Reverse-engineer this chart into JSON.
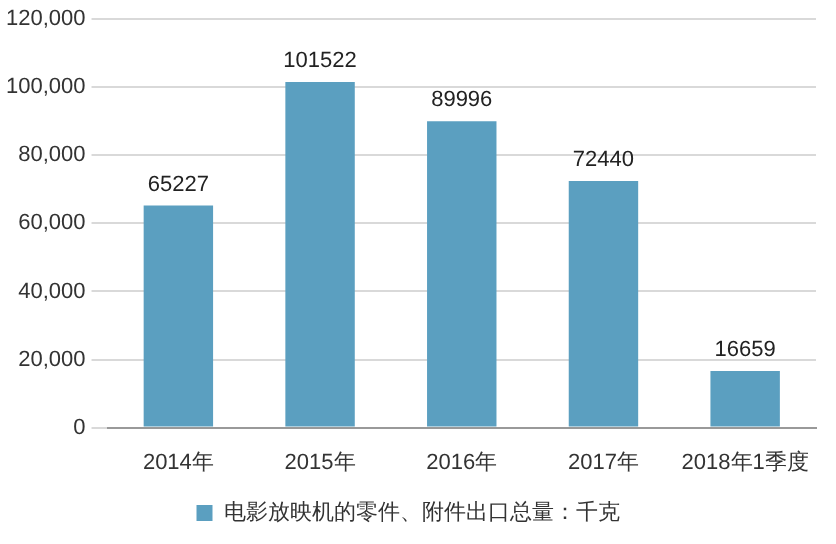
{
  "chart_data": {
    "type": "bar",
    "categories": [
      "2014年",
      "2015年",
      "2016年",
      "2017年",
      "2018年1季度"
    ],
    "series": [
      {
        "name": "电影放映机的零件、附件出口总量：千克",
        "color": "#5b9fc0",
        "values": [
          65227,
          101522,
          89996,
          72440,
          16659
        ]
      }
    ],
    "ylim": [
      0,
      120000
    ],
    "yticks": [
      {
        "value": 0,
        "label": "0"
      },
      {
        "value": 20000,
        "label": "20,000"
      },
      {
        "value": 40000,
        "label": "40,000"
      },
      {
        "value": 60000,
        "label": "60,000"
      },
      {
        "value": 80000,
        "label": "80,000"
      },
      {
        "value": 100000,
        "label": "100,000"
      },
      {
        "value": 120000,
        "label": "120,000"
      }
    ],
    "grid": "y",
    "legend": "bottom",
    "data_labels": true
  }
}
